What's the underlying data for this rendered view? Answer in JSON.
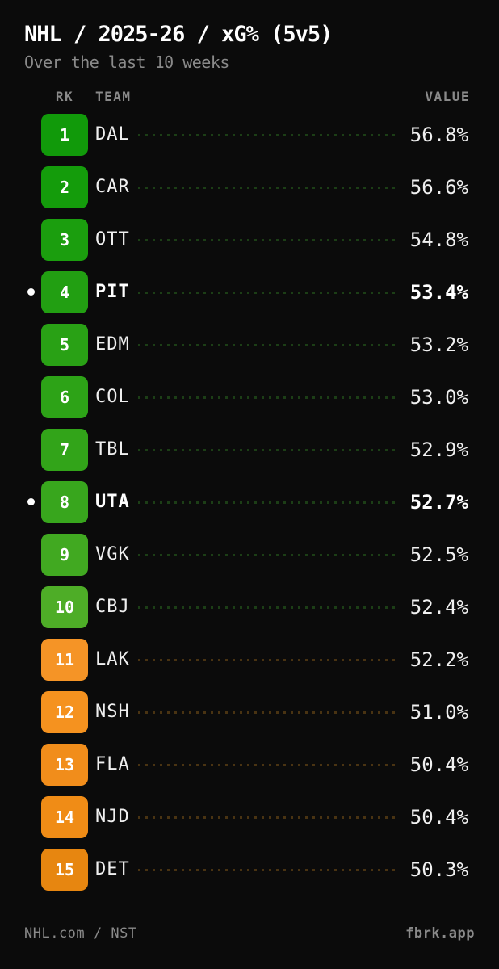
{
  "header": {
    "title": "NHL / 2025-26 / xG% (5v5)",
    "subtitle": "Over the last 10 weeks"
  },
  "table": {
    "headers": {
      "rank": "RK",
      "team": "TEAM",
      "value": "VALUE"
    },
    "rows": [
      {
        "rank": "1",
        "team": "DAL",
        "value": "56.8%",
        "tier": "green",
        "badge_color": "#119a0a",
        "highlighted": false
      },
      {
        "rank": "2",
        "team": "CAR",
        "value": "56.6%",
        "tier": "green",
        "badge_color": "#149c0b",
        "highlighted": false
      },
      {
        "rank": "3",
        "team": "OTT",
        "value": "54.8%",
        "tier": "green",
        "badge_color": "#1b9e0e",
        "highlighted": false
      },
      {
        "rank": "4",
        "team": "PIT",
        "value": "53.4%",
        "tier": "green",
        "badge_color": "#229f12",
        "highlighted": true
      },
      {
        "rank": "5",
        "team": "EDM",
        "value": "53.2%",
        "tier": "green",
        "badge_color": "#29a115",
        "highlighted": false
      },
      {
        "rank": "6",
        "team": "COL",
        "value": "53.0%",
        "tier": "green",
        "badge_color": "#2da317",
        "highlighted": false
      },
      {
        "rank": "7",
        "team": "TBL",
        "value": "52.9%",
        "tier": "green",
        "badge_color": "#32a419",
        "highlighted": false
      },
      {
        "rank": "8",
        "team": "UTA",
        "value": "52.7%",
        "tier": "green",
        "badge_color": "#38a61d",
        "highlighted": true
      },
      {
        "rank": "9",
        "team": "VGK",
        "value": "52.5%",
        "tier": "green",
        "badge_color": "#41a921",
        "highlighted": false
      },
      {
        "rank": "10",
        "team": "CBJ",
        "value": "52.4%",
        "tier": "green",
        "badge_color": "#4ead27",
        "highlighted": false
      },
      {
        "rank": "11",
        "team": "LAK",
        "value": "52.2%",
        "tier": "orange",
        "badge_color": "#f59426",
        "highlighted": false
      },
      {
        "rank": "12",
        "team": "NSH",
        "value": "51.0%",
        "tier": "orange",
        "badge_color": "#f5921f",
        "highlighted": false
      },
      {
        "rank": "13",
        "team": "FLA",
        "value": "50.4%",
        "tier": "orange",
        "badge_color": "#f18d1b",
        "highlighted": false
      },
      {
        "rank": "14",
        "team": "NJD",
        "value": "50.4%",
        "tier": "orange",
        "badge_color": "#f08c16",
        "highlighted": false
      },
      {
        "rank": "15",
        "team": "DET",
        "value": "50.3%",
        "tier": "orange",
        "badge_color": "#e78610",
        "highlighted": false
      }
    ]
  },
  "footer": {
    "source": "NHL.com / NST",
    "brand": "fbrk.app"
  },
  "colors": {
    "background": "#0b0b0b",
    "muted": "#8a8a8a",
    "leader_green": "#1c3e16",
    "leader_orange": "#493312",
    "highlight_dot": "#ffffff"
  },
  "chart_data": {
    "type": "table",
    "title": "NHL / 2025-26 / xG% (5v5)",
    "subtitle": "Over the last 10 weeks",
    "columns": [
      "RK",
      "TEAM",
      "VALUE"
    ],
    "rows": [
      [
        1,
        "DAL",
        56.8
      ],
      [
        2,
        "CAR",
        56.6
      ],
      [
        3,
        "OTT",
        54.8
      ],
      [
        4,
        "PIT",
        53.4
      ],
      [
        5,
        "EDM",
        53.2
      ],
      [
        6,
        "COL",
        53.0
      ],
      [
        7,
        "TBL",
        52.9
      ],
      [
        8,
        "UTA",
        52.7
      ],
      [
        9,
        "VGK",
        52.5
      ],
      [
        10,
        "CBJ",
        52.4
      ],
      [
        11,
        "LAK",
        52.2
      ],
      [
        12,
        "NSH",
        51.0
      ],
      [
        13,
        "FLA",
        50.4
      ],
      [
        14,
        "NJD",
        50.4
      ],
      [
        15,
        "DET",
        50.3
      ]
    ],
    "value_unit": "%",
    "highlighted_rows": [
      "PIT",
      "UTA"
    ],
    "color_encoding": "badge green for ranks 1-10 (higher xG%), orange for ranks 11-15 (lower xG%)",
    "source": "NHL.com / NST",
    "brand": "fbrk.app"
  }
}
